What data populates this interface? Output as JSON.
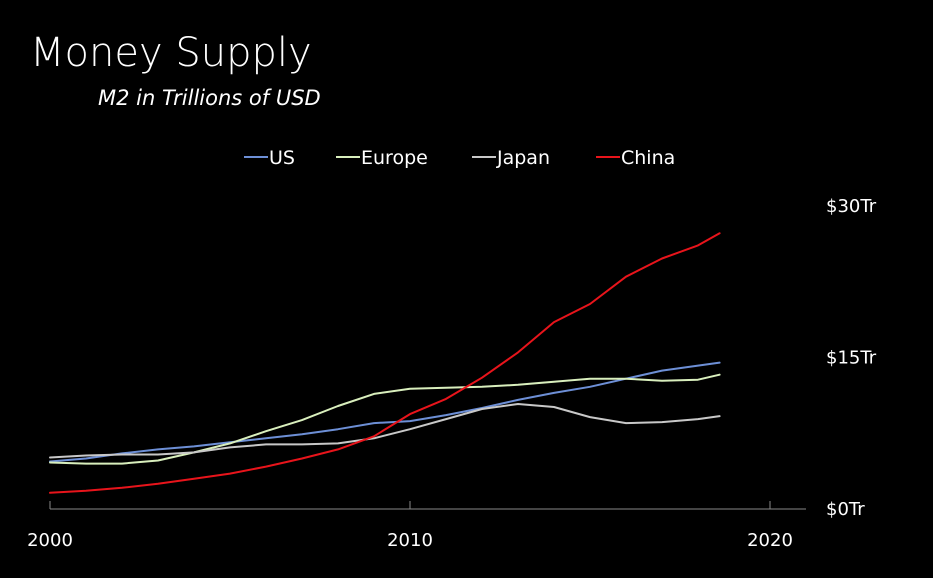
{
  "chart_data": {
    "type": "line",
    "title": "Money Supply",
    "subtitle": "M2 in Trillions of USD",
    "xlabel": "",
    "ylabel": "",
    "xlim": [
      2000,
      2021
    ],
    "ylim": [
      0,
      30
    ],
    "x_ticks": [
      2000,
      2010,
      2020
    ],
    "x_tick_labels": [
      "2000",
      "2010",
      "2020"
    ],
    "y_ticks": [
      0,
      15,
      30
    ],
    "y_tick_labels": [
      "$0Tr",
      "$15Tr",
      "$30Tr"
    ],
    "legend_position": "top-center",
    "series": [
      {
        "name": "US",
        "color": "#6d8fd6",
        "x": [
          2000,
          2001,
          2002,
          2003,
          2004,
          2005,
          2006,
          2007,
          2008,
          2009,
          2010,
          2011,
          2012,
          2013,
          2014,
          2015,
          2016,
          2017,
          2018,
          2018.6
        ],
        "y": [
          4.7,
          5.0,
          5.5,
          5.9,
          6.2,
          6.6,
          7.0,
          7.4,
          7.9,
          8.5,
          8.7,
          9.3,
          10.0,
          10.8,
          11.5,
          12.1,
          12.9,
          13.7,
          14.2,
          14.5
        ]
      },
      {
        "name": "Europe",
        "color": "#d9efbd",
        "x": [
          2000,
          2001,
          2002,
          2003,
          2004,
          2005,
          2006,
          2007,
          2008,
          2009,
          2010,
          2011,
          2012,
          2013,
          2014,
          2015,
          2016,
          2017,
          2018,
          2018.6
        ],
        "y": [
          4.6,
          4.5,
          4.5,
          4.8,
          5.6,
          6.5,
          7.7,
          8.8,
          10.2,
          11.4,
          11.9,
          12.0,
          12.1,
          12.3,
          12.6,
          12.9,
          12.9,
          12.7,
          12.8,
          13.3
        ]
      },
      {
        "name": "Japan",
        "color": "#c8c8c8",
        "x": [
          2000,
          2001,
          2002,
          2003,
          2004,
          2005,
          2006,
          2007,
          2008,
          2009,
          2010,
          2011,
          2012,
          2013,
          2014,
          2015,
          2016,
          2017,
          2018,
          2018.6
        ],
        "y": [
          5.1,
          5.3,
          5.4,
          5.4,
          5.6,
          6.1,
          6.4,
          6.4,
          6.5,
          7.0,
          7.9,
          8.9,
          9.9,
          10.4,
          10.1,
          9.1,
          8.5,
          8.6,
          8.9,
          9.2
        ]
      },
      {
        "name": "China",
        "color": "#e8141b",
        "x": [
          2000,
          2001,
          2002,
          2003,
          2004,
          2005,
          2006,
          2007,
          2008,
          2009,
          2010,
          2011,
          2012,
          2013,
          2014,
          2015,
          2016,
          2017,
          2018,
          2018.6
        ],
        "y": [
          1.6,
          1.8,
          2.1,
          2.5,
          3.0,
          3.5,
          4.2,
          5.0,
          5.9,
          7.2,
          9.4,
          10.9,
          13.0,
          15.5,
          18.5,
          20.3,
          23.0,
          24.8,
          26.1,
          27.3
        ]
      }
    ]
  }
}
